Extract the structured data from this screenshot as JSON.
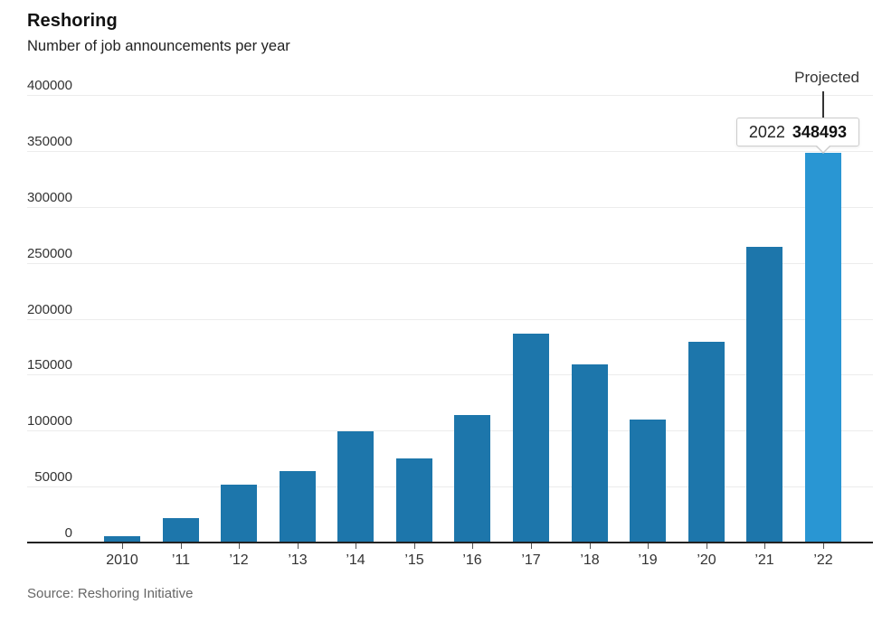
{
  "header": {
    "title": "Reshoring",
    "subtitle": "Number of job announcements per year"
  },
  "annotation": {
    "projected_label": "Projected",
    "tooltip_year": "2022",
    "tooltip_value": "348493"
  },
  "source": {
    "text": "Source: Reshoring Initiative"
  },
  "colors": {
    "bar": "#1d76ab",
    "bar_projected": "#2996d3",
    "gridline": "#ececec",
    "axis": "#222222",
    "tick_label": "#333333",
    "source_text": "#666666",
    "tooltip_border": "#cccccc"
  },
  "chart_data": {
    "type": "bar",
    "title": "Reshoring",
    "subtitle": "Number of job announcements per year",
    "categories": [
      "2010",
      "’11",
      "’12",
      "’13",
      "’14",
      "’15",
      "’16",
      "’17",
      "’18",
      "’19",
      "’20",
      "’21",
      "’22"
    ],
    "values": [
      6000,
      22000,
      52000,
      64000,
      99000,
      75000,
      114000,
      187000,
      159000,
      110000,
      179000,
      264000,
      348493
    ],
    "projected_index": 12,
    "projected_exact_value": 348493,
    "xlabel": "",
    "ylabel": "Number of job announcements per year",
    "ylim": [
      0,
      400000
    ],
    "yticks": [
      0,
      50000,
      100000,
      150000,
      200000,
      250000,
      300000,
      350000,
      400000
    ],
    "grid": true,
    "legend": "none",
    "source": "Source: Reshoring Initiative"
  }
}
